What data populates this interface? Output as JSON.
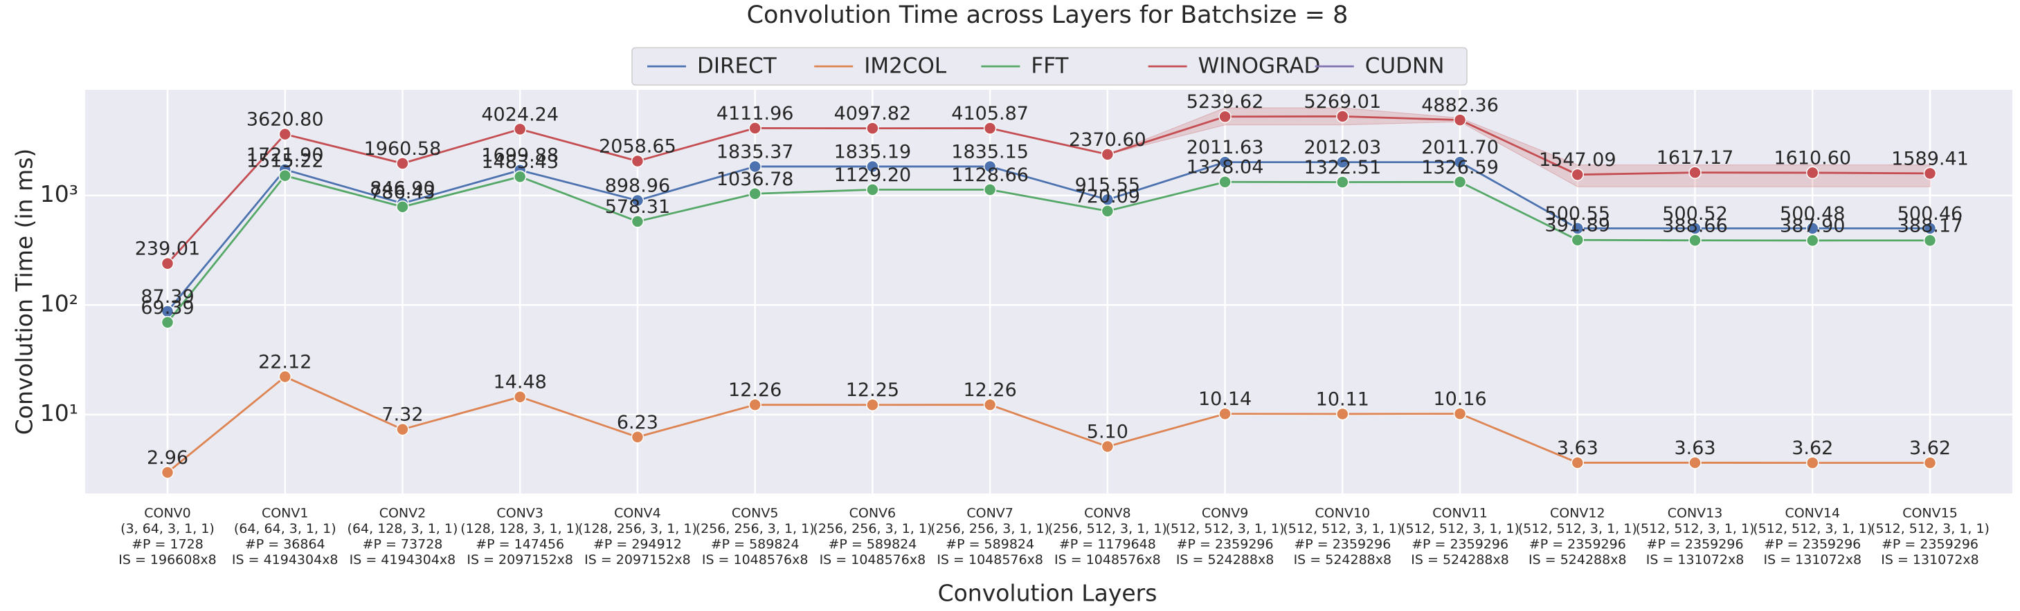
{
  "chart_data": {
    "type": "line",
    "title": "Convolution Time across Layers for Batchsize = 8",
    "xlabel": "Convolution Layers",
    "ylabel": "Convolution Time (in ms)",
    "log_y": true,
    "grid": true,
    "legend": "top",
    "ylim": [
      1.9,
      9200
    ],
    "yticks": [
      {
        "value": 10,
        "label": "10¹"
      },
      {
        "value": 100,
        "label": "10²"
      },
      {
        "value": 1000,
        "label": "10³"
      }
    ],
    "categories": [
      [
        "CONV0",
        "(3, 64, 3, 1, 1)",
        "#P = 1728",
        "IS = 196608x8"
      ],
      [
        "CONV1",
        "(64, 64, 3, 1, 1)",
        "#P = 36864",
        "IS = 4194304x8"
      ],
      [
        "CONV2",
        "(64, 128, 3, 1, 1)",
        "#P = 73728",
        "IS = 4194304x8"
      ],
      [
        "CONV3",
        "(128, 128, 3, 1, 1)",
        "#P = 147456",
        "IS = 2097152x8"
      ],
      [
        "CONV4",
        "(128, 256, 3, 1, 1)",
        "#P = 294912",
        "IS = 2097152x8"
      ],
      [
        "CONV5",
        "(256, 256, 3, 1, 1)",
        "#P = 589824",
        "IS = 1048576x8"
      ],
      [
        "CONV6",
        "(256, 256, 3, 1, 1)",
        "#P = 589824",
        "IS = 1048576x8"
      ],
      [
        "CONV7",
        "(256, 256, 3, 1, 1)",
        "#P = 589824",
        "IS = 1048576x8"
      ],
      [
        "CONV8",
        "(256, 512, 3, 1, 1)",
        "#P = 1179648",
        "IS = 1048576x8"
      ],
      [
        "CONV9",
        "(512, 512, 3, 1, 1)",
        "#P = 2359296",
        "IS = 524288x8"
      ],
      [
        "CONV10",
        "(512, 512, 3, 1, 1)",
        "#P = 2359296",
        "IS = 524288x8"
      ],
      [
        "CONV11",
        "(512, 512, 3, 1, 1)",
        "#P = 2359296",
        "IS = 524288x8"
      ],
      [
        "CONV12",
        "(512, 512, 3, 1, 1)",
        "#P = 2359296",
        "IS = 524288x8"
      ],
      [
        "CONV13",
        "(512, 512, 3, 1, 1)",
        "#P = 2359296",
        "IS = 131072x8"
      ],
      [
        "CONV14",
        "(512, 512, 3, 1, 1)",
        "#P = 2359296",
        "IS = 131072x8"
      ],
      [
        "CONV15",
        "(512, 512, 3, 1, 1)",
        "#P = 2359296",
        "IS = 131072x8"
      ]
    ],
    "series": [
      {
        "name": "DIRECT",
        "color": "#4c72b0",
        "values": [
          87.39,
          1721.9,
          846.9,
          1699.88,
          898.96,
          1835.37,
          1835.19,
          1835.15,
          915.55,
          2011.63,
          2012.03,
          2011.7,
          500.55,
          500.52,
          500.48,
          500.46
        ],
        "value_labels": [
          "87.39",
          "1721.90",
          "846.90",
          "1699.88",
          "898.96",
          "1835.37",
          "1835.19",
          "1835.15",
          "915.55",
          "2011.63",
          "2012.03",
          "2011.70",
          "500.55",
          "500.52",
          "500.48",
          "500.46"
        ]
      },
      {
        "name": "IM2COL",
        "color": "#dd8452",
        "values": [
          2.96,
          22.12,
          7.32,
          14.48,
          6.23,
          12.26,
          12.25,
          12.26,
          5.1,
          10.14,
          10.11,
          10.16,
          3.63,
          3.63,
          3.62,
          3.62
        ],
        "value_labels": [
          "2.96",
          "22.12",
          "7.32",
          "14.48",
          "6.23",
          "12.26",
          "12.25",
          "12.26",
          "5.10",
          "10.14",
          "10.11",
          "10.16",
          "3.63",
          "3.63",
          "3.62",
          "3.62"
        ]
      },
      {
        "name": "FFT",
        "color": "#55a868",
        "values": [
          69.39,
          1515.22,
          786.43,
          1483.43,
          578.31,
          1036.78,
          1129.2,
          1128.66,
          720.09,
          1328.04,
          1322.51,
          1326.59,
          391.89,
          388.66,
          387.9,
          388.17
        ],
        "value_labels": [
          "69.39",
          "1515.22",
          "786.43",
          "1483.43",
          "578.31",
          "1036.78",
          "1129.20",
          "1128.66",
          "720.09",
          "1328.04",
          "1322.51",
          "1326.59",
          "391.89",
          "388.66",
          "387.90",
          "388.17"
        ]
      },
      {
        "name": "WINOGRAD",
        "color": "#c44e52",
        "values": [
          239.01,
          3620.8,
          1960.58,
          4024.24,
          2058.65,
          4111.96,
          4097.82,
          4105.87,
          2370.6,
          5239.62,
          5269.01,
          4882.36,
          1547.09,
          1617.17,
          1610.6,
          1589.41
        ],
        "value_labels": [
          "239.01",
          "3620.80",
          "1960.58",
          "4024.24",
          "2058.65",
          "4111.96",
          "4097.82",
          "4105.87",
          "2370.60",
          "5239.62",
          "5269.01",
          "4882.36",
          "1547.09",
          "1617.17",
          "1610.60",
          "1589.41"
        ],
        "band_lower": [
          null,
          null,
          null,
          null,
          null,
          null,
          null,
          null,
          2370.6,
          4400,
          4400,
          4700,
          1200,
          1200,
          1200,
          1200
        ],
        "band_upper": [
          null,
          null,
          null,
          null,
          null,
          null,
          null,
          null,
          2370.6,
          6300,
          6300,
          5100,
          1900,
          1900,
          1900,
          1900
        ]
      },
      {
        "name": "CUDNN",
        "color": "#8172b3",
        "values": [
          null,
          null,
          null,
          null,
          null,
          null,
          null,
          null,
          null,
          null,
          null,
          null,
          null,
          null,
          null,
          null
        ]
      }
    ]
  }
}
